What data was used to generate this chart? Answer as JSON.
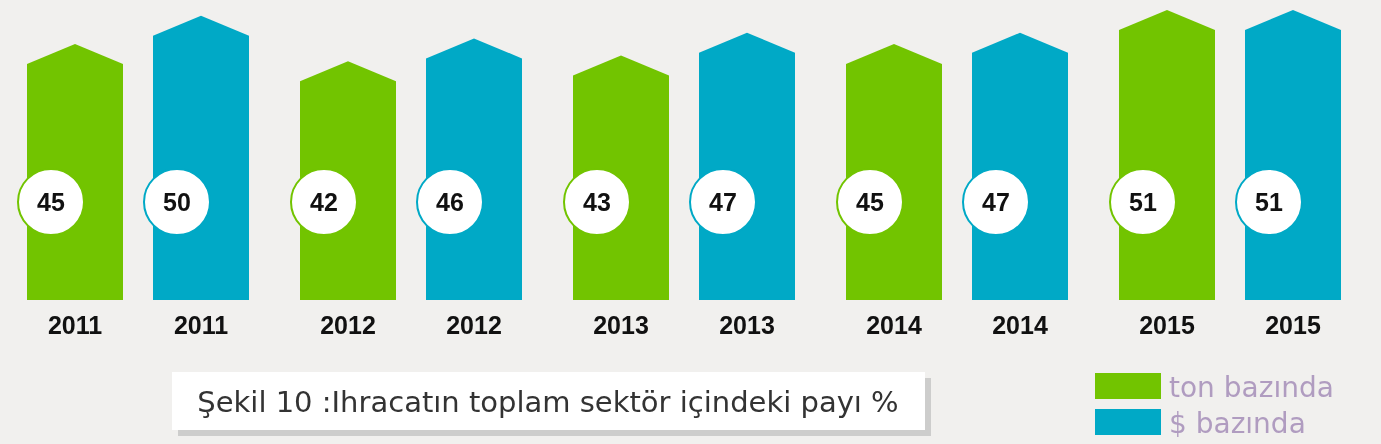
{
  "chart_data": {
    "type": "bar",
    "title": "Şekil 10 :Ihracatın toplam sektör içindeki payı %",
    "categories": [
      "2011",
      "2012",
      "2013",
      "2014",
      "2015"
    ],
    "series": [
      {
        "name": "ton bazında",
        "color": "#72c400",
        "values": [
          45,
          42,
          43,
          45,
          51
        ]
      },
      {
        "name": "$ bazında",
        "color": "#00a9c6",
        "values": [
          50,
          46,
          47,
          47,
          51
        ]
      }
    ],
    "data_labels": true,
    "legend": "bottom right"
  }
}
